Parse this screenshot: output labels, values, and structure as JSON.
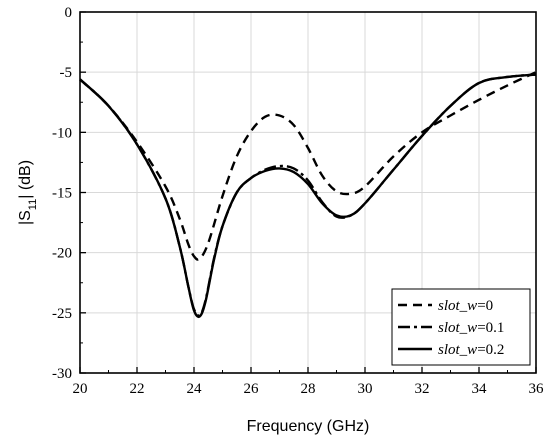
{
  "chart_data": {
    "type": "line",
    "title": "",
    "xlabel": "Frequency (GHz)",
    "ylabel_prefix": "|S",
    "ylabel_sub": "11",
    "ylabel_suffix": "| (dB)",
    "xlim": [
      20,
      36
    ],
    "ylim": [
      -30,
      0
    ],
    "xticks": [
      20,
      22,
      24,
      26,
      28,
      30,
      32,
      34,
      36
    ],
    "yticks": [
      0,
      -5,
      -10,
      -15,
      -20,
      -25,
      -30
    ],
    "grid": true,
    "legend_position": "bottom-right",
    "series": [
      {
        "name_italic": "slot_w",
        "name_rest": "=0",
        "style": "dashed",
        "x": [
          20,
          21,
          22,
          23,
          23.5,
          23.8,
          24.0,
          24.2,
          24.5,
          25,
          25.5,
          26,
          26.5,
          27,
          27.5,
          28,
          28.5,
          29,
          29.5,
          30,
          31,
          32,
          33,
          34,
          35,
          36
        ],
        "y": [
          -5.6,
          -7.8,
          -10.8,
          -14.5,
          -17.2,
          -19.3,
          -20.3,
          -20.5,
          -19.2,
          -15.3,
          -12.0,
          -9.9,
          -8.7,
          -8.6,
          -9.4,
          -11.3,
          -13.6,
          -14.9,
          -15.1,
          -14.5,
          -12.0,
          -10.0,
          -8.6,
          -7.3,
          -6.1,
          -5.0
        ]
      },
      {
        "name_italic": "slot_w",
        "name_rest": "=0.1",
        "style": "dash-dot",
        "x": [
          20,
          21,
          22,
          23,
          23.5,
          23.8,
          24.0,
          24.2,
          24.4,
          24.7,
          25,
          25.5,
          26,
          26.5,
          27,
          27.5,
          28,
          28.5,
          29,
          29.5,
          30,
          31,
          32,
          33,
          34,
          35,
          36
        ],
        "y": [
          -5.6,
          -7.8,
          -11.0,
          -15.5,
          -19.5,
          -22.8,
          -24.7,
          -25.2,
          -24.0,
          -20.5,
          -17.8,
          -15.0,
          -13.8,
          -13.1,
          -12.8,
          -13.0,
          -14.0,
          -15.8,
          -17.0,
          -16.9,
          -15.9,
          -13.1,
          -10.3,
          -7.8,
          -5.9,
          -5.4,
          -5.2
        ]
      },
      {
        "name_italic": "slot_w",
        "name_rest": "=0.2",
        "style": "solid",
        "x": [
          20,
          21,
          22,
          23,
          23.5,
          23.8,
          24.0,
          24.2,
          24.4,
          24.7,
          25,
          25.5,
          26,
          26.5,
          27,
          27.5,
          28,
          28.5,
          29,
          29.5,
          30,
          31,
          32,
          33,
          34,
          35,
          36
        ],
        "y": [
          -5.6,
          -7.8,
          -11.0,
          -15.5,
          -19.5,
          -22.8,
          -24.8,
          -25.3,
          -24.1,
          -20.6,
          -17.8,
          -15.0,
          -13.8,
          -13.2,
          -13.0,
          -13.3,
          -14.3,
          -15.9,
          -16.9,
          -16.9,
          -15.9,
          -13.1,
          -10.3,
          -7.8,
          -5.9,
          -5.4,
          -5.2
        ]
      }
    ]
  }
}
